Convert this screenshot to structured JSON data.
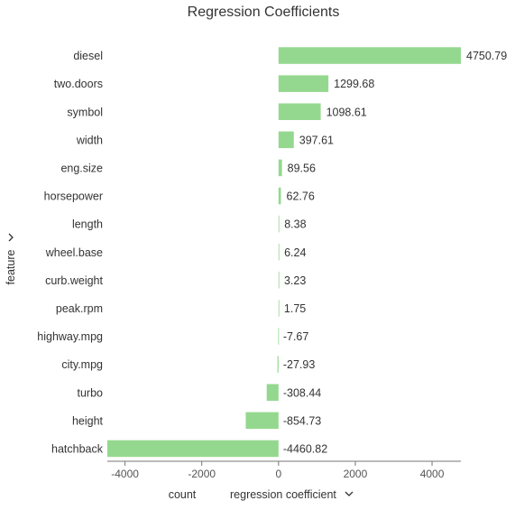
{
  "chart_data": {
    "type": "bar",
    "orientation": "horizontal",
    "title": "Regression Coefficients",
    "ylabel": "feature",
    "xlabel": "regression coefficient",
    "x_axis_option": "count",
    "categories": [
      "diesel",
      "two.doors",
      "symbol",
      "width",
      "eng.size",
      "horsepower",
      "length",
      "wheel.base",
      "curb.weight",
      "peak.rpm",
      "highway.mpg",
      "city.mpg",
      "turbo",
      "height",
      "hatchback"
    ],
    "values": [
      4750.79,
      1299.68,
      1098.61,
      397.61,
      89.56,
      62.76,
      8.38,
      6.24,
      3.23,
      1.75,
      -7.67,
      -27.93,
      -308.44,
      -854.73,
      -4460.82
    ],
    "value_labels": [
      "4750.79",
      "1299.68",
      "1098.61",
      "397.61",
      "89.56",
      "62.76",
      "8.38",
      "6.24",
      "3.23",
      "1.75",
      "-7.67",
      "-27.93",
      "-308.44",
      "-854.73",
      "-4460.82"
    ],
    "xlim": [
      -4460.82,
      4750.79
    ],
    "xticks": [
      -4000,
      -2000,
      0,
      2000,
      4000
    ],
    "xtick_labels": [
      "-4000",
      "-2000",
      "0",
      "2000",
      "4000"
    ],
    "grid": false,
    "legend": "none",
    "bar_color": "#94d88f"
  },
  "controls": {
    "dropdown_icon": "chevron-down-icon"
  }
}
